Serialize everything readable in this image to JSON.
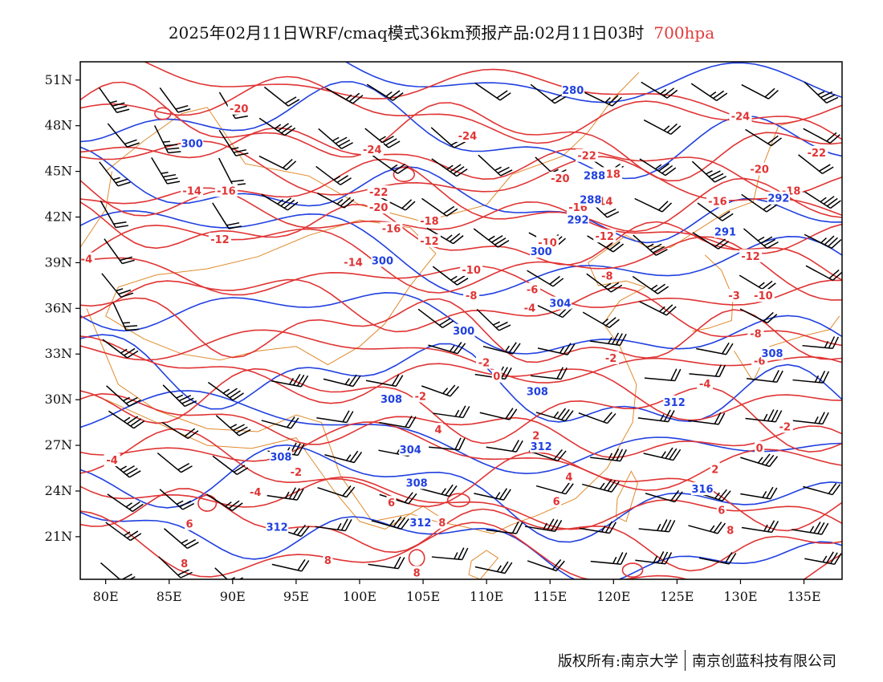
{
  "title": {
    "main": "2025年02月11日WRF/cmaq模式36km预报产品:02月11日03时",
    "level": "700hpa"
  },
  "axes": {
    "lat_labels": [
      "51N",
      "48N",
      "45N",
      "42N",
      "39N",
      "36N",
      "33N",
      "30N",
      "27N",
      "24N",
      "21N"
    ],
    "lat_values": [
      51,
      48,
      45,
      42,
      39,
      36,
      33,
      30,
      27,
      24,
      21
    ],
    "lon_labels": [
      "80E",
      "85E",
      "90E",
      "95E",
      "100E",
      "105E",
      "110E",
      "115E",
      "120E",
      "125E",
      "130E",
      "135E"
    ],
    "lon_values": [
      80,
      85,
      90,
      95,
      100,
      105,
      110,
      115,
      120,
      125,
      130,
      135
    ],
    "lon_range": [
      78,
      138
    ],
    "lat_range": [
      18.2,
      52.2
    ]
  },
  "colors": {
    "temperature_contours": "#e03434",
    "height_contours": "#2040e0",
    "coastline_borders": "#e08a2c",
    "wind_barbs": "#000000"
  },
  "temperature_labels": [
    {
      "text": "-20",
      "lon": 90.5,
      "lat": 49.1
    },
    {
      "text": "-24",
      "lon": 108.5,
      "lat": 47.3
    },
    {
      "text": "-24",
      "lon": 101,
      "lat": 46.4
    },
    {
      "text": "-22",
      "lon": 117.9,
      "lat": 46.0
    },
    {
      "text": "-24",
      "lon": 130,
      "lat": 48.6
    },
    {
      "text": "-22",
      "lon": 136,
      "lat": 46.2
    },
    {
      "text": "-20",
      "lon": 131.5,
      "lat": 45.1
    },
    {
      "text": "-18",
      "lon": 134,
      "lat": 43.7
    },
    {
      "text": "-16",
      "lon": 128.2,
      "lat": 43.0
    },
    {
      "text": "-22",
      "lon": 101.5,
      "lat": 43.6
    },
    {
      "text": "-20",
      "lon": 101.5,
      "lat": 42.6
    },
    {
      "text": "-18",
      "lon": 105.5,
      "lat": 41.7
    },
    {
      "text": "-16",
      "lon": 102.5,
      "lat": 41.2
    },
    {
      "text": "-14",
      "lon": 86.8,
      "lat": 43.7
    },
    {
      "text": "-16",
      "lon": 89.5,
      "lat": 43.7
    },
    {
      "text": "-12",
      "lon": 89,
      "lat": 40.5
    },
    {
      "text": "-12",
      "lon": 105.5,
      "lat": 40.4
    },
    {
      "text": "-14",
      "lon": 99.5,
      "lat": 39.0
    },
    {
      "text": "-4",
      "lon": 78.5,
      "lat": 39.2
    },
    {
      "text": "-20",
      "lon": 115.8,
      "lat": 44.5
    },
    {
      "text": "-18",
      "lon": 119.8,
      "lat": 44.8
    },
    {
      "text": "-16",
      "lon": 117.2,
      "lat": 42.6
    },
    {
      "text": "-14",
      "lon": 119.2,
      "lat": 43.0
    },
    {
      "text": "-12",
      "lon": 119.3,
      "lat": 40.7
    },
    {
      "text": "-10",
      "lon": 114.8,
      "lat": 40.3
    },
    {
      "text": "-10",
      "lon": 108.8,
      "lat": 38.5
    },
    {
      "text": "-8",
      "lon": 108.8,
      "lat": 36.8
    },
    {
      "text": "-6",
      "lon": 113.6,
      "lat": 37.2
    },
    {
      "text": "-8",
      "lon": 119.5,
      "lat": 38.1
    },
    {
      "text": "-4",
      "lon": 113.4,
      "lat": 36.0
    },
    {
      "text": "-12",
      "lon": 130.8,
      "lat": 39.4
    },
    {
      "text": "-3",
      "lon": 129.5,
      "lat": 36.8
    },
    {
      "text": "-10",
      "lon": 131.8,
      "lat": 36.8
    },
    {
      "text": "-8",
      "lon": 131.2,
      "lat": 34.3
    },
    {
      "text": "-6",
      "lon": 131.5,
      "lat": 32.5
    },
    {
      "text": "-2",
      "lon": 109.8,
      "lat": 32.4
    },
    {
      "text": "-2",
      "lon": 119.8,
      "lat": 32.7
    },
    {
      "text": "0",
      "lon": 110.8,
      "lat": 31.5
    },
    {
      "text": "-2",
      "lon": 104.8,
      "lat": 30.2
    },
    {
      "text": "-4",
      "lon": 127.2,
      "lat": 31.0
    },
    {
      "text": "-2",
      "lon": 133.5,
      "lat": 28.2
    },
    {
      "text": "2",
      "lon": 113.9,
      "lat": 27.6
    },
    {
      "text": "0",
      "lon": 131.5,
      "lat": 26.8
    },
    {
      "text": "2",
      "lon": 128,
      "lat": 25.4
    },
    {
      "text": "-4",
      "lon": 80.5,
      "lat": 26.0
    },
    {
      "text": "-2",
      "lon": 95,
      "lat": 25.2
    },
    {
      "text": "-4",
      "lon": 91.8,
      "lat": 23.9
    },
    {
      "text": "4",
      "lon": 106.2,
      "lat": 28.0
    },
    {
      "text": "4",
      "lon": 116.5,
      "lat": 24.9
    },
    {
      "text": "6",
      "lon": 102.5,
      "lat": 23.2
    },
    {
      "text": "6",
      "lon": 115.5,
      "lat": 23.3
    },
    {
      "text": "6",
      "lon": 128.5,
      "lat": 22.7
    },
    {
      "text": "6",
      "lon": 86.6,
      "lat": 21.8
    },
    {
      "text": "8",
      "lon": 106.5,
      "lat": 21.9
    },
    {
      "text": "8",
      "lon": 129.2,
      "lat": 21.4
    },
    {
      "text": "8",
      "lon": 86.2,
      "lat": 19.2
    },
    {
      "text": "8",
      "lon": 97.5,
      "lat": 19.4
    },
    {
      "text": "8",
      "lon": 104.5,
      "lat": 18.6
    }
  ],
  "height_labels": [
    {
      "text": "280",
      "lon": 116.8,
      "lat": 50.3
    },
    {
      "text": "300",
      "lon": 86.8,
      "lat": 46.8
    },
    {
      "text": "300",
      "lon": 101.8,
      "lat": 39.1
    },
    {
      "text": "300",
      "lon": 114.3,
      "lat": 39.7
    },
    {
      "text": "288",
      "lon": 118.5,
      "lat": 44.7
    },
    {
      "text": "288",
      "lon": 118.2,
      "lat": 43.1
    },
    {
      "text": "292",
      "lon": 117.2,
      "lat": 41.8
    },
    {
      "text": "292",
      "lon": 133,
      "lat": 43.2
    },
    {
      "text": "291",
      "lon": 128.8,
      "lat": 41.0
    },
    {
      "text": "300",
      "lon": 108.2,
      "lat": 34.5
    },
    {
      "text": "304",
      "lon": 115.8,
      "lat": 36.3
    },
    {
      "text": "308",
      "lon": 132.5,
      "lat": 33.0
    },
    {
      "text": "308",
      "lon": 114,
      "lat": 30.5
    },
    {
      "text": "312",
      "lon": 124.8,
      "lat": 29.8
    },
    {
      "text": "308",
      "lon": 102.5,
      "lat": 30.0
    },
    {
      "text": "304",
      "lon": 104,
      "lat": 26.7
    },
    {
      "text": "308",
      "lon": 93.8,
      "lat": 26.2
    },
    {
      "text": "308",
      "lon": 104.5,
      "lat": 24.5
    },
    {
      "text": "312",
      "lon": 114.3,
      "lat": 26.9
    },
    {
      "text": "316",
      "lon": 127,
      "lat": 24.1
    },
    {
      "text": "312",
      "lon": 104.8,
      "lat": 21.9
    },
    {
      "text": "312",
      "lon": 93.5,
      "lat": 21.6
    }
  ],
  "footer": {
    "left": "版权所有:南京大学",
    "right": "南京创蓝科技有限公司"
  }
}
